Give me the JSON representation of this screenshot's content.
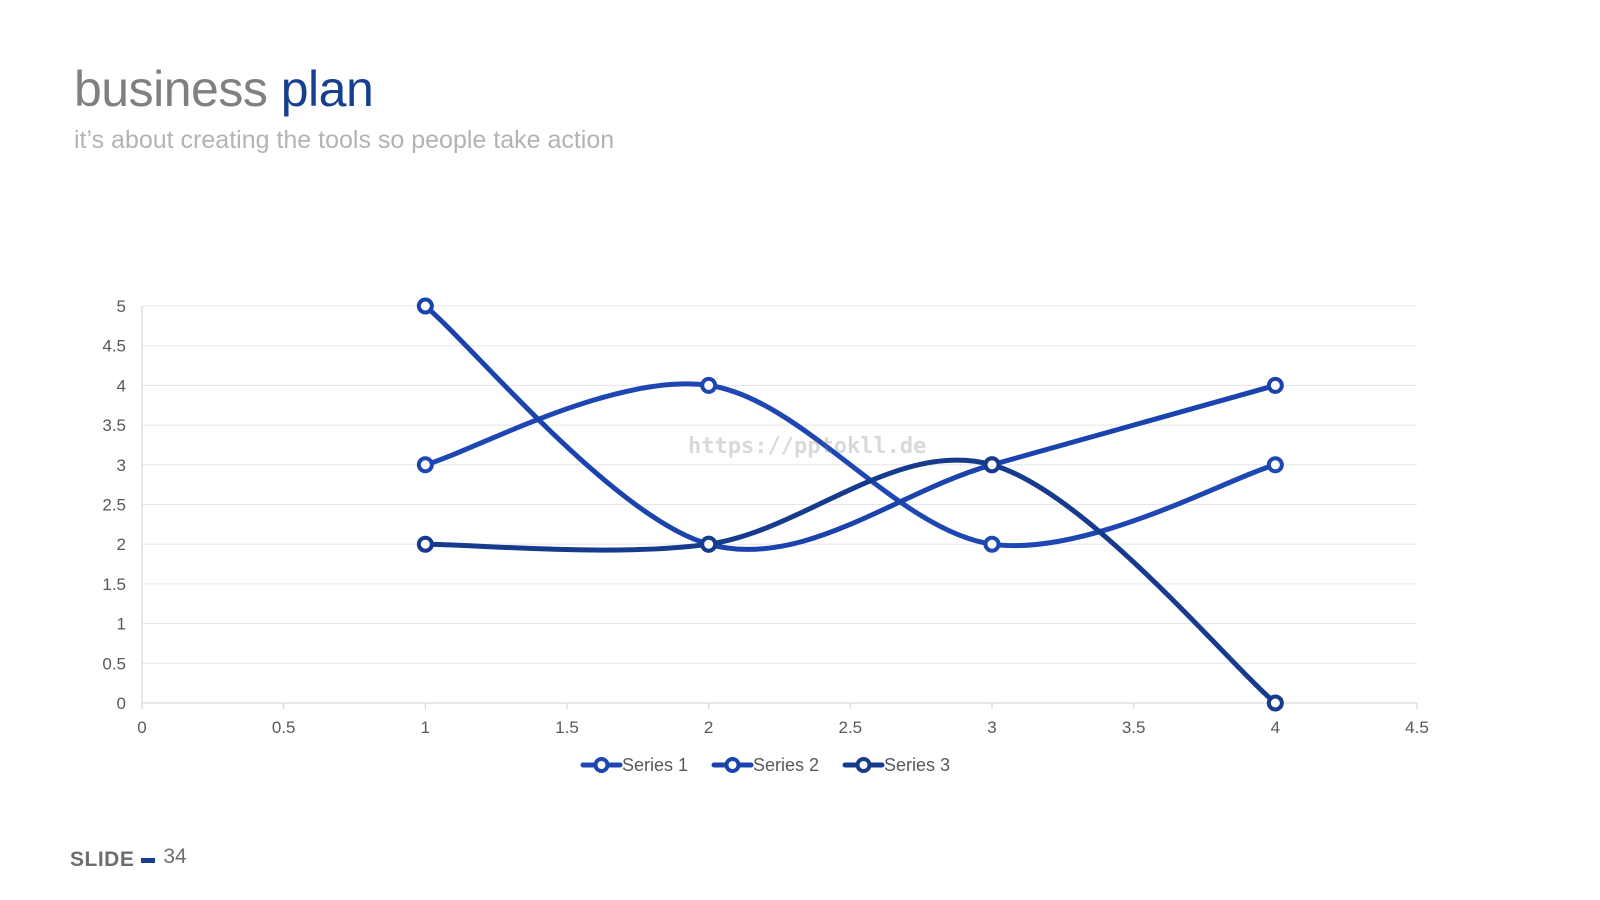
{
  "slide": {
    "title_part1": "business ",
    "title_part2": "plan",
    "subtitle": "it’s about creating the tools so people take action",
    "watermark": "https://pptokll.de",
    "footer_label": "SLIDE",
    "slide_number": "34"
  },
  "colors": {
    "title_gray": "#808080",
    "accent": "#173f8f",
    "series1": "#1e47b4",
    "series2": "#1a43ad",
    "series3": "#163a8c"
  },
  "chart_data": {
    "type": "scatter",
    "smooth_lines": true,
    "xlim": [
      0,
      4.5
    ],
    "ylim": [
      0,
      5
    ],
    "x_ticks": [
      "0",
      "0.5",
      "1",
      "1.5",
      "2",
      "2.5",
      "3",
      "3.5",
      "4",
      "4.5"
    ],
    "y_ticks": [
      "0",
      "0.5",
      "1",
      "1.5",
      "2",
      "2.5",
      "3",
      "3.5",
      "4",
      "4.5",
      "5"
    ],
    "grid": true,
    "legend_position": "bottom",
    "series": [
      {
        "name": "Series 1",
        "x": [
          1,
          2,
          3,
          4
        ],
        "y": [
          3,
          4,
          2,
          3
        ],
        "color": "#1e47b4"
      },
      {
        "name": "Series 2",
        "x": [
          1,
          2,
          3,
          4
        ],
        "y": [
          5,
          2,
          3,
          4
        ],
        "color": "#1a43ad"
      },
      {
        "name": "Series 3",
        "x": [
          1,
          2,
          3,
          4
        ],
        "y": [
          2,
          2,
          3,
          0
        ],
        "color": "#163a8c"
      }
    ]
  }
}
